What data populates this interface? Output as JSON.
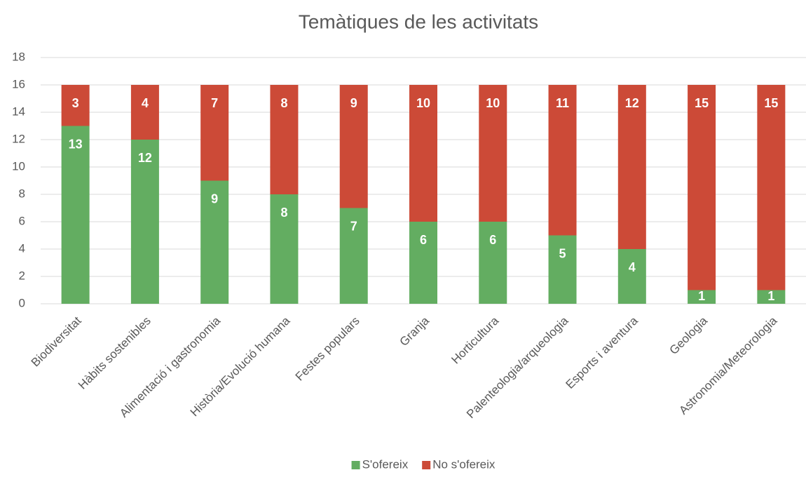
{
  "chart_data": {
    "type": "stacked_bar",
    "title": "Temàtiques de les activitats",
    "categories": [
      "Biodiversitat",
      "Hàbits sostenibles",
      "Alimentació i gastronomia",
      "Història/Evolució humana",
      "Festes populars",
      "Granja",
      "Horticultura",
      "Palenteologia/arqueologia",
      "Esports i aventura",
      "Geologia",
      "Astronomia/Meteorologia"
    ],
    "series": [
      {
        "name": "S'ofereix",
        "color": "#63ad61",
        "values": [
          13,
          12,
          9,
          8,
          7,
          6,
          6,
          5,
          4,
          1,
          1
        ]
      },
      {
        "name": "No s'ofereix",
        "color": "#cc4a37",
        "values": [
          3,
          4,
          7,
          8,
          9,
          10,
          10,
          11,
          12,
          15,
          15
        ]
      }
    ],
    "ylim": [
      0,
      18
    ],
    "yticks": [
      0,
      2,
      4,
      6,
      8,
      10,
      12,
      14,
      16,
      18
    ],
    "grid": true,
    "legend": "bottom"
  }
}
